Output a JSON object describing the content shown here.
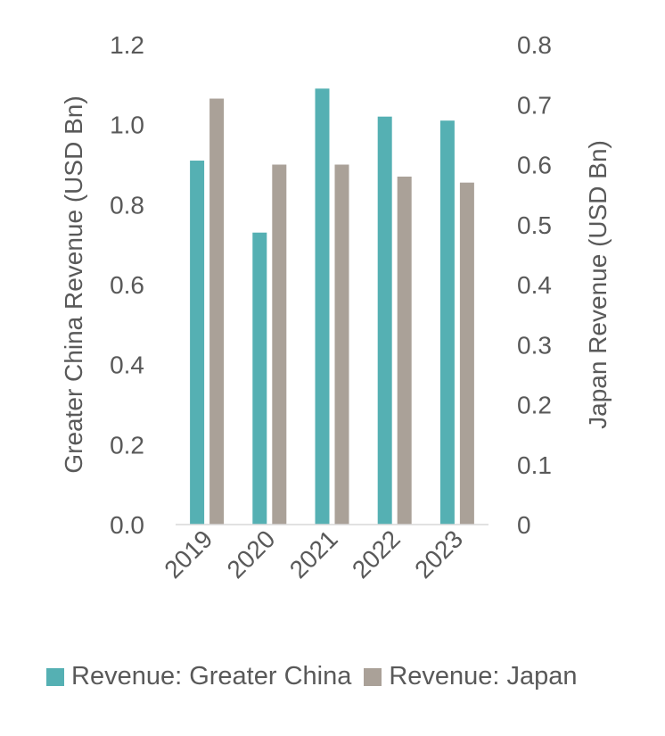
{
  "chart_data": {
    "type": "bar",
    "categories": [
      "2019",
      "2020",
      "2021",
      "2022",
      "2023"
    ],
    "series": [
      {
        "name": "Revenue: Greater China",
        "axis": "left",
        "color": "#55b0b3",
        "values": [
          0.91,
          0.73,
          1.09,
          1.02,
          1.01
        ]
      },
      {
        "name": "Revenue: Japan",
        "axis": "right",
        "color": "#aaa198",
        "values": [
          0.71,
          0.6,
          0.6,
          0.58,
          0.57
        ]
      }
    ],
    "y_left": {
      "label": "Greater China Revenue (USD Bn)",
      "min": 0,
      "max": 1.2,
      "ticks": [
        "0.0",
        "0.2",
        "0.4",
        "0.6",
        "0.8",
        "1.0",
        "1.2"
      ]
    },
    "y_right": {
      "label": "Japan Revenue (USD Bn)",
      "min": 0,
      "max": 0.8,
      "ticks": [
        "0",
        "0.1",
        "0.2",
        "0.3",
        "0.4",
        "0.5",
        "0.6",
        "0.7",
        "0.8"
      ]
    },
    "grid": false,
    "legend_position": "bottom"
  }
}
